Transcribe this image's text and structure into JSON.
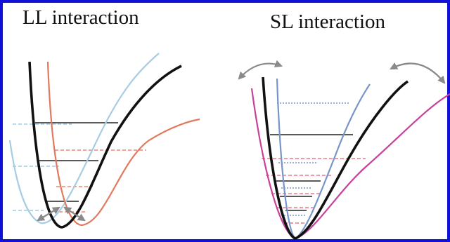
{
  "frame": {
    "border_color": "#1010d8"
  },
  "panels": {
    "ll": {
      "title": "LL interaction",
      "curves": [
        {
          "name": "light-blue-potential-curve",
          "color": "#a7cde3"
        },
        {
          "name": "red-potential-curve",
          "color": "#e07a5f"
        },
        {
          "name": "black-potential-curve",
          "color": "#111111"
        }
      ],
      "arrows": [
        "double-headed-arrow-left-icon",
        "double-headed-arrow-right-icon"
      ]
    },
    "sl": {
      "title": "SL interaction",
      "curves": [
        {
          "name": "magenta-potential-curve",
          "color": "#c8409a"
        },
        {
          "name": "blue-potential-curve",
          "color": "#7895c8"
        },
        {
          "name": "black-potential-curve",
          "color": "#111111"
        }
      ],
      "arrows": [
        "curved-double-arrow-left-icon",
        "curved-double-arrow-right-icon"
      ]
    }
  }
}
